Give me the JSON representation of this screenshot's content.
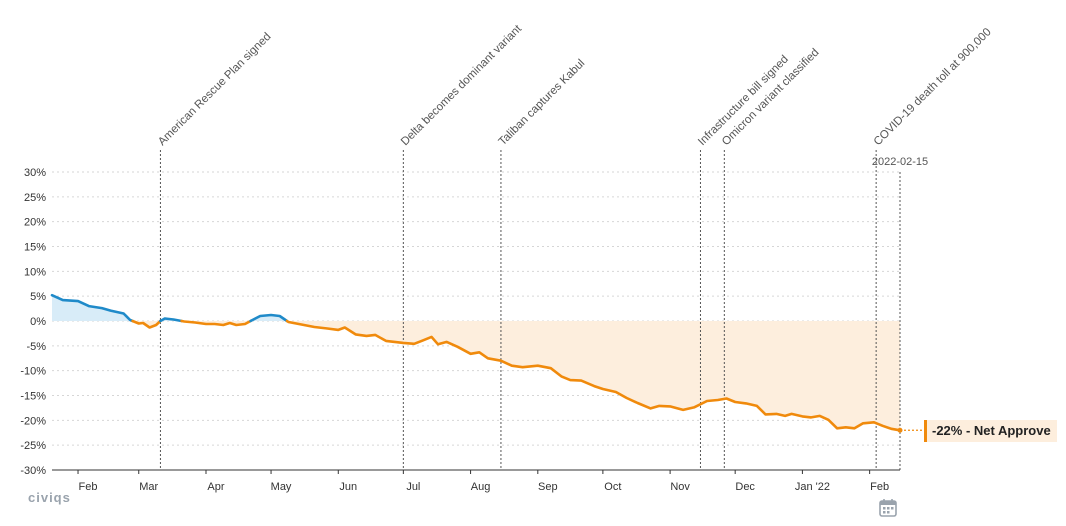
{
  "brand": "civiqs",
  "badge": {
    "text": "-22% - Net Approve"
  },
  "date_label": "2022-02-15",
  "colors": {
    "positive": "#1f8ac9",
    "negative": "#f08a0c",
    "positive_fill": "#d8ecf8",
    "negative_fill": "#fdeedd",
    "event_line": "#555555",
    "grid": "#d6d6d6"
  },
  "icons": {
    "calendar": "calendar-icon"
  },
  "chart_data": {
    "type": "line",
    "title": "",
    "xlabel": "",
    "ylabel": "",
    "ylim": [
      -30,
      30
    ],
    "y_ticks": [
      30,
      25,
      20,
      15,
      10,
      5,
      0,
      -5,
      -10,
      -15,
      -20,
      -25,
      -30
    ],
    "y_tick_labels": [
      "30%",
      "25%",
      "20%",
      "15%",
      "10%",
      "5%",
      "0%",
      "-5%",
      "-10%",
      "-15%",
      "-20%",
      "-25%",
      "-30%"
    ],
    "xlim": [
      "2021-01-20",
      "2022-02-15"
    ],
    "x_ticks": [
      {
        "date": "2021-02-01",
        "label": "Feb"
      },
      {
        "date": "2021-03-01",
        "label": "Mar"
      },
      {
        "date": "2021-04-01",
        "label": "Apr"
      },
      {
        "date": "2021-05-01",
        "label": "May"
      },
      {
        "date": "2021-06-01",
        "label": "Jun"
      },
      {
        "date": "2021-07-01",
        "label": "Jul"
      },
      {
        "date": "2021-08-01",
        "label": "Aug"
      },
      {
        "date": "2021-09-01",
        "label": "Sep"
      },
      {
        "date": "2021-10-01",
        "label": "Oct"
      },
      {
        "date": "2021-11-01",
        "label": "Nov"
      },
      {
        "date": "2021-12-01",
        "label": "Dec"
      },
      {
        "date": "2022-01-01",
        "label": "Jan '22"
      },
      {
        "date": "2022-02-01",
        "label": "Feb"
      }
    ],
    "grid": true,
    "series": [
      {
        "points": [
          [
            "2021-01-20",
            5.2
          ],
          [
            "2021-01-25",
            4.2
          ],
          [
            "2021-02-01",
            4.0
          ],
          [
            "2021-02-06",
            3.0
          ],
          [
            "2021-02-12",
            2.6
          ],
          [
            "2021-02-16",
            2.1
          ],
          [
            "2021-02-22",
            1.5
          ],
          [
            "2021-02-25",
            0.2
          ],
          [
            "2021-03-01",
            -0.5
          ],
          [
            "2021-03-03",
            -0.4
          ],
          [
            "2021-03-06",
            -1.3
          ],
          [
            "2021-03-09",
            -0.8
          ],
          [
            "2021-03-11",
            0.0
          ],
          [
            "2021-03-13",
            0.5
          ],
          [
            "2021-03-17",
            0.3
          ],
          [
            "2021-03-22",
            -0.1
          ],
          [
            "2021-03-27",
            -0.3
          ],
          [
            "2021-04-01",
            -0.6
          ],
          [
            "2021-04-05",
            -0.6
          ],
          [
            "2021-04-09",
            -0.8
          ],
          [
            "2021-04-12",
            -0.4
          ],
          [
            "2021-04-15",
            -0.8
          ],
          [
            "2021-04-19",
            -0.6
          ],
          [
            "2021-04-22",
            0.1
          ],
          [
            "2021-04-26",
            1.0
          ],
          [
            "2021-05-01",
            1.2
          ],
          [
            "2021-05-05",
            1.0
          ],
          [
            "2021-05-09",
            -0.2
          ],
          [
            "2021-05-15",
            -0.7
          ],
          [
            "2021-05-21",
            -1.2
          ],
          [
            "2021-05-27",
            -1.5
          ],
          [
            "2021-06-01",
            -1.8
          ],
          [
            "2021-06-04",
            -1.3
          ],
          [
            "2021-06-09",
            -2.7
          ],
          [
            "2021-06-14",
            -3.0
          ],
          [
            "2021-06-18",
            -2.8
          ],
          [
            "2021-06-23",
            -4.0
          ],
          [
            "2021-07-01",
            -4.4
          ],
          [
            "2021-07-06",
            -4.6
          ],
          [
            "2021-07-10",
            -3.9
          ],
          [
            "2021-07-14",
            -3.2
          ],
          [
            "2021-07-17",
            -4.7
          ],
          [
            "2021-07-21",
            -4.2
          ],
          [
            "2021-07-26",
            -5.2
          ],
          [
            "2021-08-01",
            -6.6
          ],
          [
            "2021-08-05",
            -6.3
          ],
          [
            "2021-08-09",
            -7.5
          ],
          [
            "2021-08-15",
            -8.0
          ],
          [
            "2021-08-20",
            -9.0
          ],
          [
            "2021-08-25",
            -9.3
          ],
          [
            "2021-09-01",
            -9.0
          ],
          [
            "2021-09-07",
            -9.5
          ],
          [
            "2021-09-12",
            -11.2
          ],
          [
            "2021-09-16",
            -11.9
          ],
          [
            "2021-09-21",
            -12.0
          ],
          [
            "2021-09-27",
            -13.1
          ],
          [
            "2021-10-01",
            -13.7
          ],
          [
            "2021-10-07",
            -14.3
          ],
          [
            "2021-10-12",
            -15.5
          ],
          [
            "2021-10-17",
            -16.5
          ],
          [
            "2021-10-23",
            -17.6
          ],
          [
            "2021-10-27",
            -17.1
          ],
          [
            "2021-11-01",
            -17.2
          ],
          [
            "2021-11-07",
            -17.9
          ],
          [
            "2021-11-12",
            -17.4
          ],
          [
            "2021-11-18",
            -16.1
          ],
          [
            "2021-11-23",
            -15.9
          ],
          [
            "2021-11-27",
            -15.6
          ],
          [
            "2021-12-01",
            -16.3
          ],
          [
            "2021-12-06",
            -16.6
          ],
          [
            "2021-12-11",
            -17.1
          ],
          [
            "2021-12-15",
            -18.8
          ],
          [
            "2021-12-20",
            -18.7
          ],
          [
            "2021-12-24",
            -19.1
          ],
          [
            "2021-12-27",
            -18.7
          ],
          [
            "2022-01-01",
            -19.2
          ],
          [
            "2022-01-05",
            -19.4
          ],
          [
            "2022-01-09",
            -19.1
          ],
          [
            "2022-01-13",
            -19.9
          ],
          [
            "2022-01-17",
            -21.6
          ],
          [
            "2022-01-21",
            -21.4
          ],
          [
            "2022-01-25",
            -21.6
          ],
          [
            "2022-01-29",
            -20.6
          ],
          [
            "2022-02-03",
            -20.4
          ],
          [
            "2022-02-07",
            -21.1
          ],
          [
            "2022-02-11",
            -21.7
          ],
          [
            "2022-02-15",
            -22.0
          ]
        ]
      }
    ],
    "events": [
      {
        "date": "2021-03-11",
        "label": "American Rescue Plan signed"
      },
      {
        "date": "2021-07-01",
        "label": "Delta becomes dominant variant"
      },
      {
        "date": "2021-08-15",
        "label": "Taliban captures Kabul"
      },
      {
        "date": "2021-11-15",
        "label": "Infrastructure bill signed"
      },
      {
        "date": "2021-11-26",
        "label": "Omicron variant classified"
      },
      {
        "date": "2022-02-04",
        "label": "COVID-19 death toll at 900,000"
      }
    ],
    "current_value": -22
  }
}
